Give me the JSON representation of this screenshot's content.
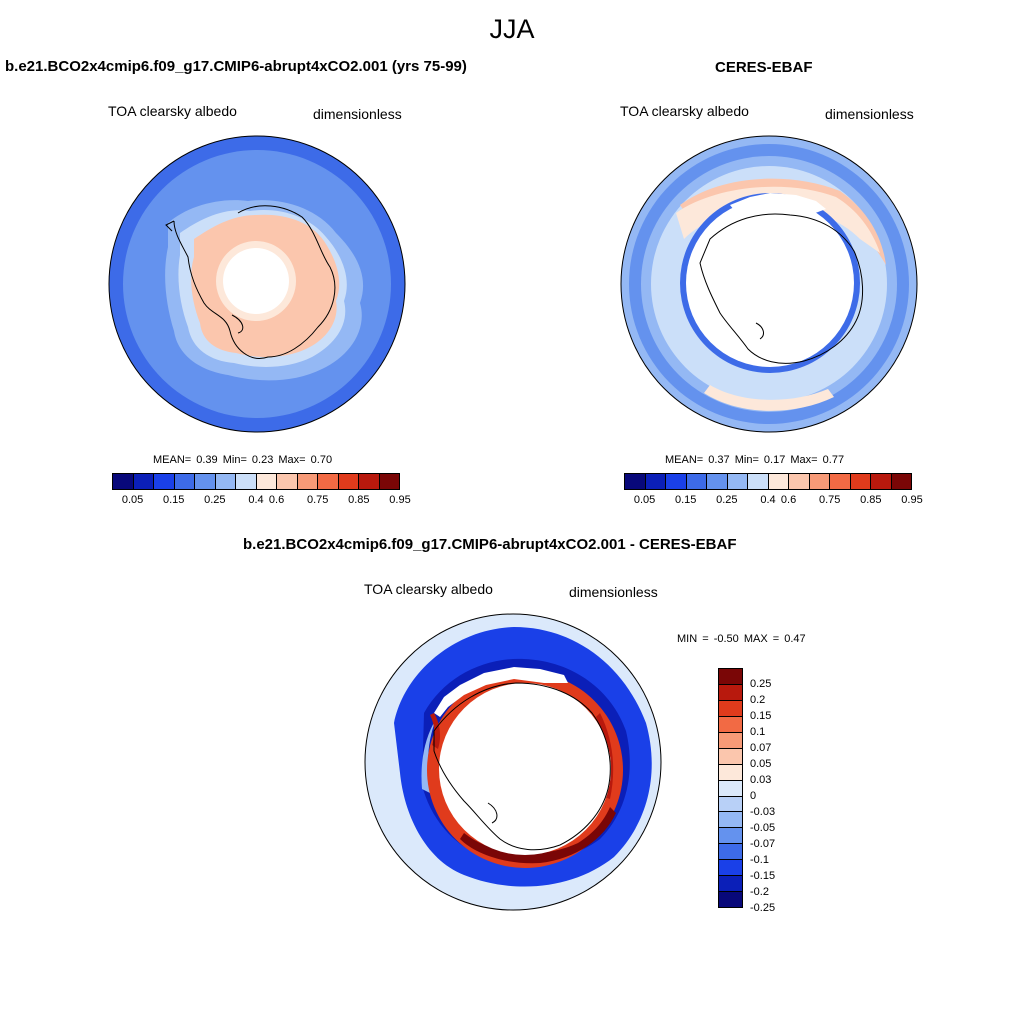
{
  "figure": {
    "title": "JJA"
  },
  "panels": {
    "model": {
      "title": "b.e21.BCO2x4cmip6.f09_g17.CMIP6-abrupt4xCO2.001 (yrs 75-99)",
      "variable": "TOA clearsky albedo",
      "units": "dimensionless",
      "stats": "MEAN=  0.39  Min=  0.23  Max=  0.70"
    },
    "obs": {
      "title": "CERES-EBAF",
      "variable": "TOA clearsky albedo",
      "units": "dimensionless",
      "stats": "MEAN=  0.37  Min=  0.17  Max=  0.77"
    },
    "diff": {
      "title": "b.e21.BCO2x4cmip6.f09_g17.CMIP6-abrupt4xCO2.001 - CERES-EBAF",
      "variable": "TOA clearsky albedo",
      "units": "dimensionless",
      "stats": "MIN =  -0.50 MAX =   0.47"
    }
  },
  "colorbar_abs": {
    "colors": [
      "#08087a",
      "#0b1fb8",
      "#1a40e8",
      "#3d6be8",
      "#6492ee",
      "#94b8f4",
      "#cbdff9",
      "#fde8da",
      "#fbc6ad",
      "#f79a77",
      "#f26a44",
      "#e03b1c",
      "#b8190d",
      "#7a0606"
    ],
    "tick_labels": [
      "0.05",
      "0.15",
      "0.25",
      "0.4",
      "0.6",
      "0.75",
      "0.85",
      "0.95"
    ]
  },
  "colorbar_diff": {
    "colors": [
      "#7a0606",
      "#b8190d",
      "#e03b1c",
      "#f26a44",
      "#f79a77",
      "#fbc6ad",
      "#fde8da",
      "#dbe9fb",
      "#b8d0f7",
      "#94b8f4",
      "#6492ee",
      "#3d6be8",
      "#1a40e8",
      "#0b1fb8",
      "#08087a"
    ],
    "tick_labels": [
      "0.25",
      "0.2",
      "0.15",
      "0.1",
      "0.07",
      "0.05",
      "0.03",
      "0",
      "-0.03",
      "-0.05",
      "-0.07",
      "-0.1",
      "-0.15",
      "-0.2",
      "-0.25"
    ]
  }
}
